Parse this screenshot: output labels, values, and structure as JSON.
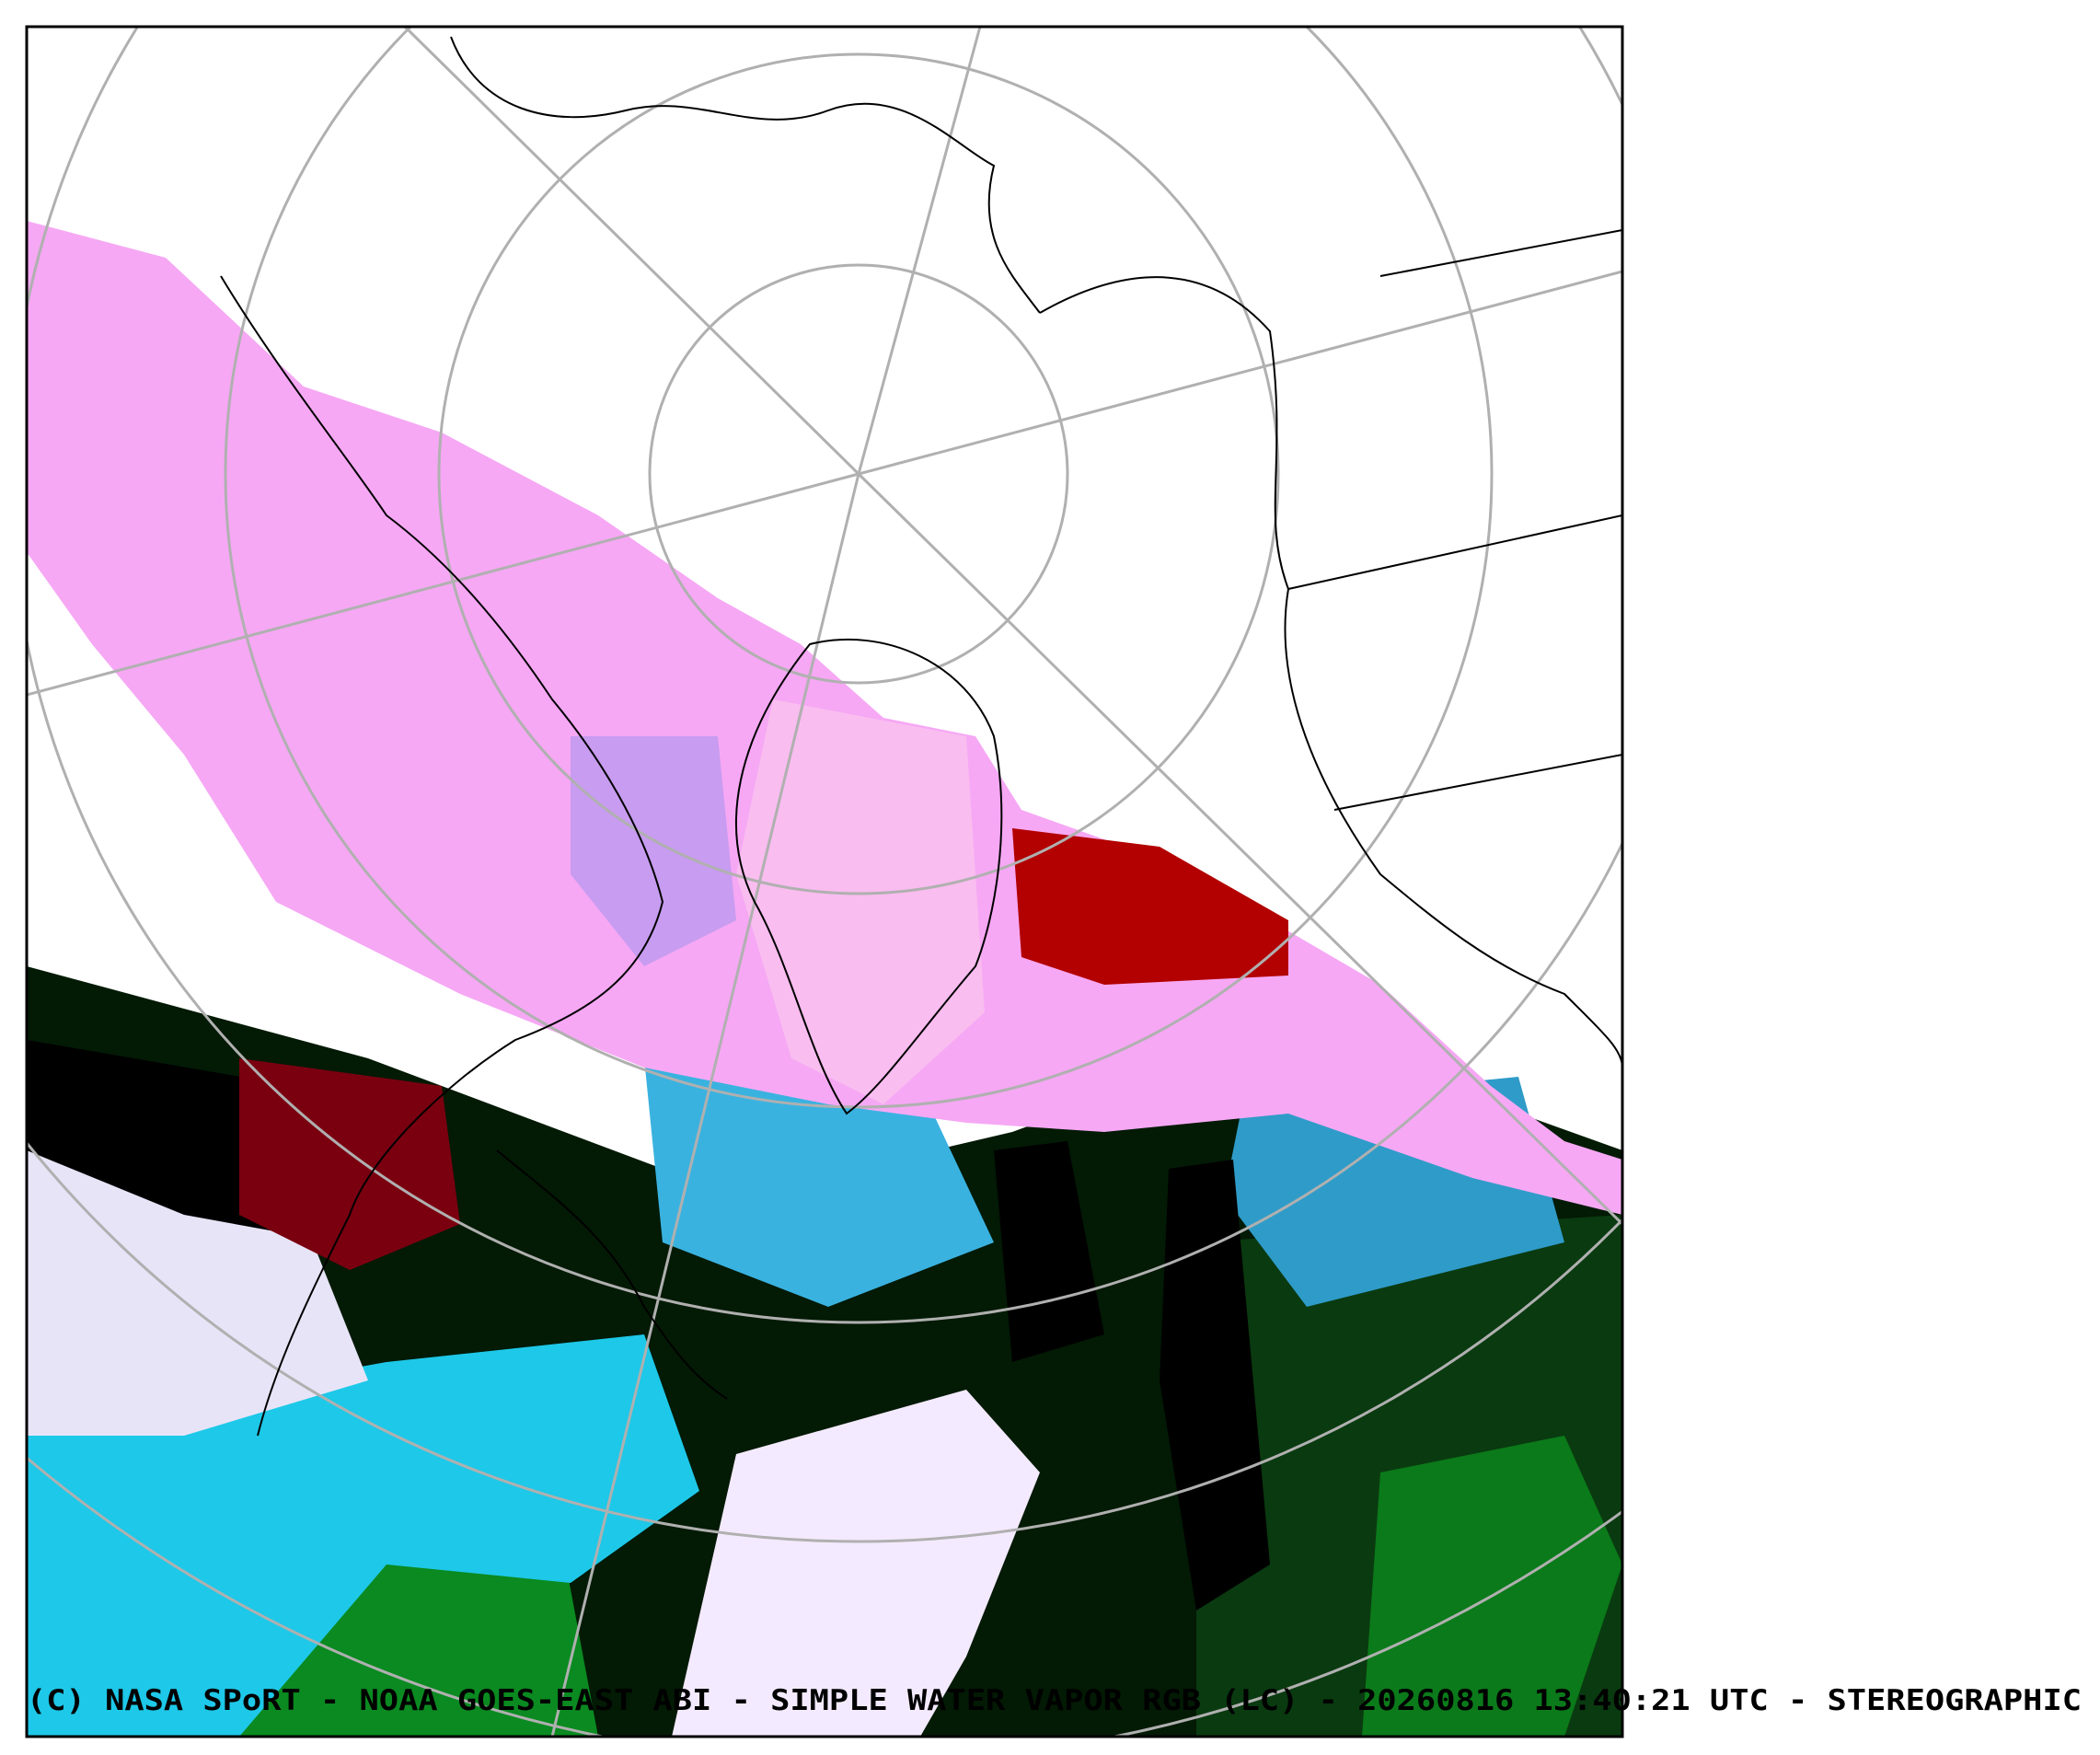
{
  "footer": {
    "caption": "(C) NASA SPoRT - NOAA GOES-EAST ABI  -  SIMPLE WATER VAPOR RGB (LC)  -  20260816 13:40:21 UTC - STEREOGRAPHIC"
  }
}
